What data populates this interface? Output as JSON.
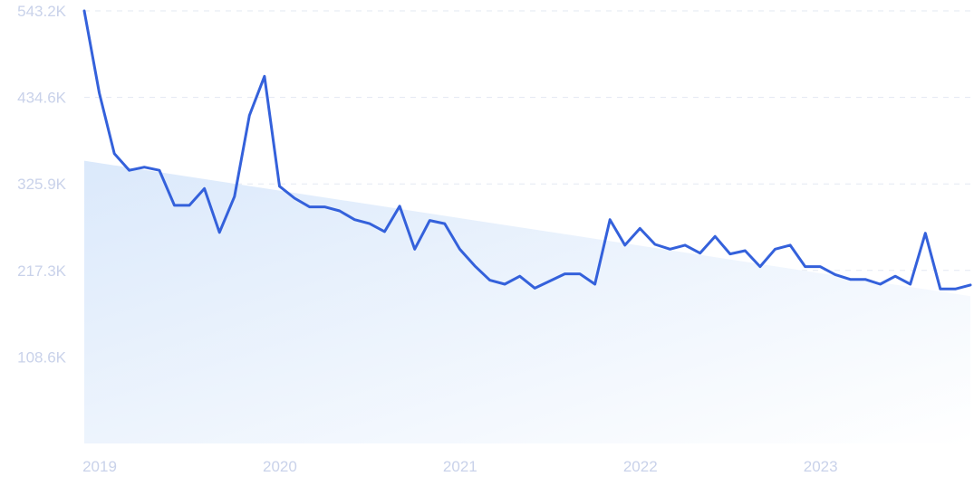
{
  "chart_data": {
    "type": "line",
    "title": "",
    "xlabel": "",
    "ylabel": "",
    "x_ticks": [
      "2019",
      "2020",
      "2021",
      "2022",
      "2023"
    ],
    "y_ticks": [
      "108.6K",
      "217.3K",
      "325.9K",
      "434.6K",
      "543.2K"
    ],
    "y_tick_values": [
      108600,
      217300,
      325900,
      434600,
      543200
    ],
    "ylim": [
      0,
      543200
    ],
    "xlim": [
      "2019-01",
      "2023-12"
    ],
    "grid": true,
    "colors": {
      "line": "#3461db",
      "trend_fill_start": "#dbe9fb",
      "trend_fill_end": "#ffffff"
    },
    "trend": {
      "x": [
        "2019-01",
        "2023-12"
      ],
      "values": [
        355000,
        185000
      ]
    },
    "series": [
      {
        "x": [
          "2019-01",
          "2019-02",
          "2019-03",
          "2019-04",
          "2019-05",
          "2019-06",
          "2019-07",
          "2019-08",
          "2019-09",
          "2019-10",
          "2019-11",
          "2019-12",
          "2020-01",
          "2020-02",
          "2020-03",
          "2020-04",
          "2020-05",
          "2020-06",
          "2020-07",
          "2020-08",
          "2020-09",
          "2020-10",
          "2020-11",
          "2020-12",
          "2021-01",
          "2021-02",
          "2021-03",
          "2021-04",
          "2021-05",
          "2021-06",
          "2021-07",
          "2021-08",
          "2021-09",
          "2021-10",
          "2021-11",
          "2021-12",
          "2022-01",
          "2022-02",
          "2022-03",
          "2022-04",
          "2022-05",
          "2022-06",
          "2022-07",
          "2022-08",
          "2022-09",
          "2022-10",
          "2022-11",
          "2022-12",
          "2023-01",
          "2023-02",
          "2023-03",
          "2023-04",
          "2023-05",
          "2023-06",
          "2023-07",
          "2023-08",
          "2023-09",
          "2023-10",
          "2023-11",
          "2023-12"
        ],
        "values": [
          543200,
          440000,
          364000,
          343000,
          347000,
          343000,
          299000,
          299000,
          320000,
          265000,
          310000,
          412000,
          461000,
          323000,
          308000,
          297000,
          297000,
          292000,
          281000,
          276000,
          266000,
          298000,
          244000,
          280000,
          276000,
          244000,
          223000,
          205000,
          200000,
          210000,
          195000,
          204000,
          213000,
          213000,
          200000,
          281000,
          249000,
          270000,
          250000,
          244000,
          249000,
          239000,
          260000,
          238000,
          242000,
          222000,
          244000,
          249000,
          222000,
          222000,
          212000,
          206000,
          206000,
          200000,
          210000,
          200000,
          264000,
          194000,
          194000,
          199000
        ]
      }
    ]
  }
}
